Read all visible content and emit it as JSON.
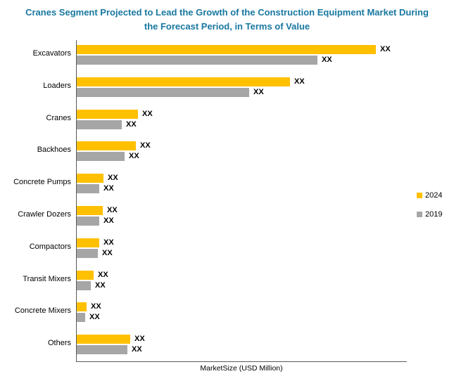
{
  "title": {
    "line1": "Cranes Segment Projected to Lead the Growth of the Construction Equipment Market During",
    "line2": "the Forecast Period, in Terms of Value",
    "color": "#1878a0"
  },
  "chart_data": {
    "type": "bar",
    "orientation": "horizontal",
    "title": "Cranes Segment Projected to Lead the Growth of the Construction Equipment Market During the Forecast Period, in Terms of Value",
    "xlabel": "MarketSize (USD Million)",
    "data_label": "XX",
    "categories": [
      "Excavators",
      "Loaders",
      "Cranes",
      "Backhoes",
      "Concrete Pumps",
      "Crawler Dozers",
      "Compactors",
      "Transit Mixers",
      "Concrete Mixers",
      "Others"
    ],
    "series": [
      {
        "name": "2024",
        "color": "#FFC000",
        "values_relative": [
          425,
          303,
          87,
          84,
          38,
          37,
          32,
          24,
          14,
          76
        ]
      },
      {
        "name": "2019",
        "color": "#A6A6A6",
        "values_relative": [
          342,
          245,
          64,
          68,
          32,
          32,
          30,
          20,
          12,
          72
        ]
      }
    ],
    "legend_position": "right",
    "grid": false
  }
}
